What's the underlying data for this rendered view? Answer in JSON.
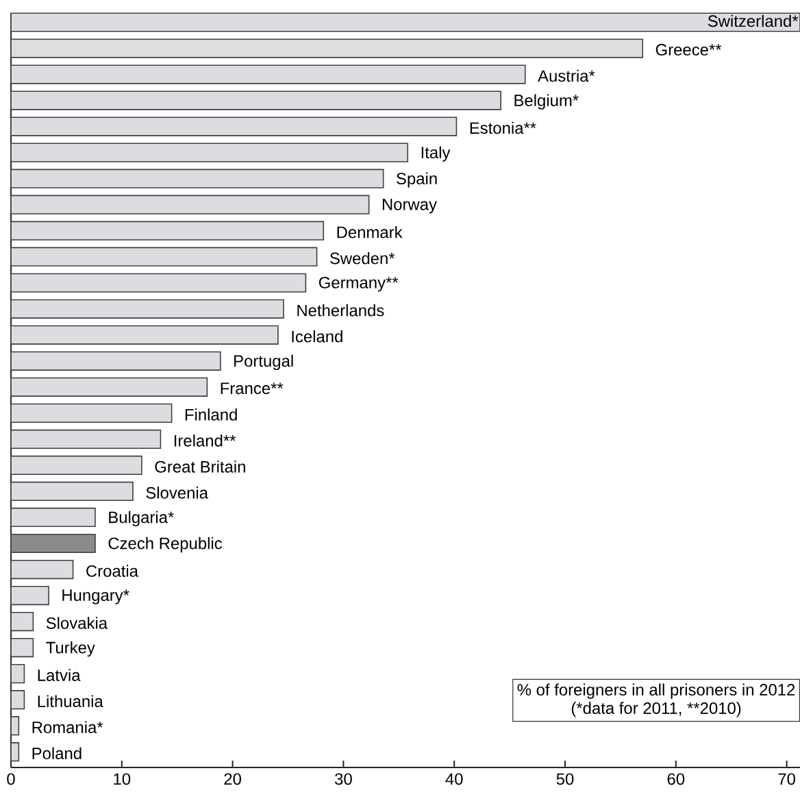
{
  "chart_data": {
    "type": "bar",
    "orientation": "horizontal",
    "categories": [
      "Switzerland*",
      "Greece**",
      "Austria*",
      "Belgium*",
      "Estonia**",
      "Italy",
      "Spain",
      "Norway",
      "Denmark",
      "Sweden*",
      "Germany**",
      "Netherlands",
      "Iceland",
      "Portugal",
      "France**",
      "Finland",
      "Ireland**",
      "Great Britain",
      "Slovenia",
      "Bulgaria*",
      "Czech Republic",
      "Croatia",
      "Hungary*",
      "Slovakia",
      "Turkey",
      "Latvia",
      "Lithuania",
      "Romania*",
      "Poland"
    ],
    "values": [
      71.2,
      57.0,
      46.4,
      44.2,
      40.2,
      35.8,
      33.6,
      32.3,
      28.2,
      27.6,
      26.6,
      24.6,
      24.1,
      18.9,
      17.7,
      14.5,
      13.5,
      11.8,
      11.0,
      7.6,
      7.6,
      5.6,
      3.4,
      2.0,
      2.0,
      1.2,
      1.2,
      0.7,
      0.7
    ],
    "colors": [
      "#dcdde0",
      "#dcdde0",
      "#dcdde0",
      "#dcdde0",
      "#dcdde0",
      "#dcdde0",
      "#dcdde0",
      "#dcdde0",
      "#dcdde0",
      "#dcdde0",
      "#dcdde0",
      "#dcdde0",
      "#dcdde0",
      "#dcdde0",
      "#dcdde0",
      "#dcdde0",
      "#dcdde0",
      "#dcdde0",
      "#dcdde0",
      "#dcdde0",
      "#8a8b8f",
      "#dcdde0",
      "#dcdde0",
      "#dcdde0",
      "#dcdde0",
      "#dcdde0",
      "#dcdde0",
      "#dcdde0",
      "#dcdde0"
    ],
    "xlim": [
      0,
      71.2
    ],
    "xticks": [
      0,
      10,
      20,
      30,
      40,
      50,
      60,
      70
    ],
    "annotations": [
      "% of foreigners in all prisoners in 2012",
      "(*data for 2011, **2010)"
    ]
  }
}
